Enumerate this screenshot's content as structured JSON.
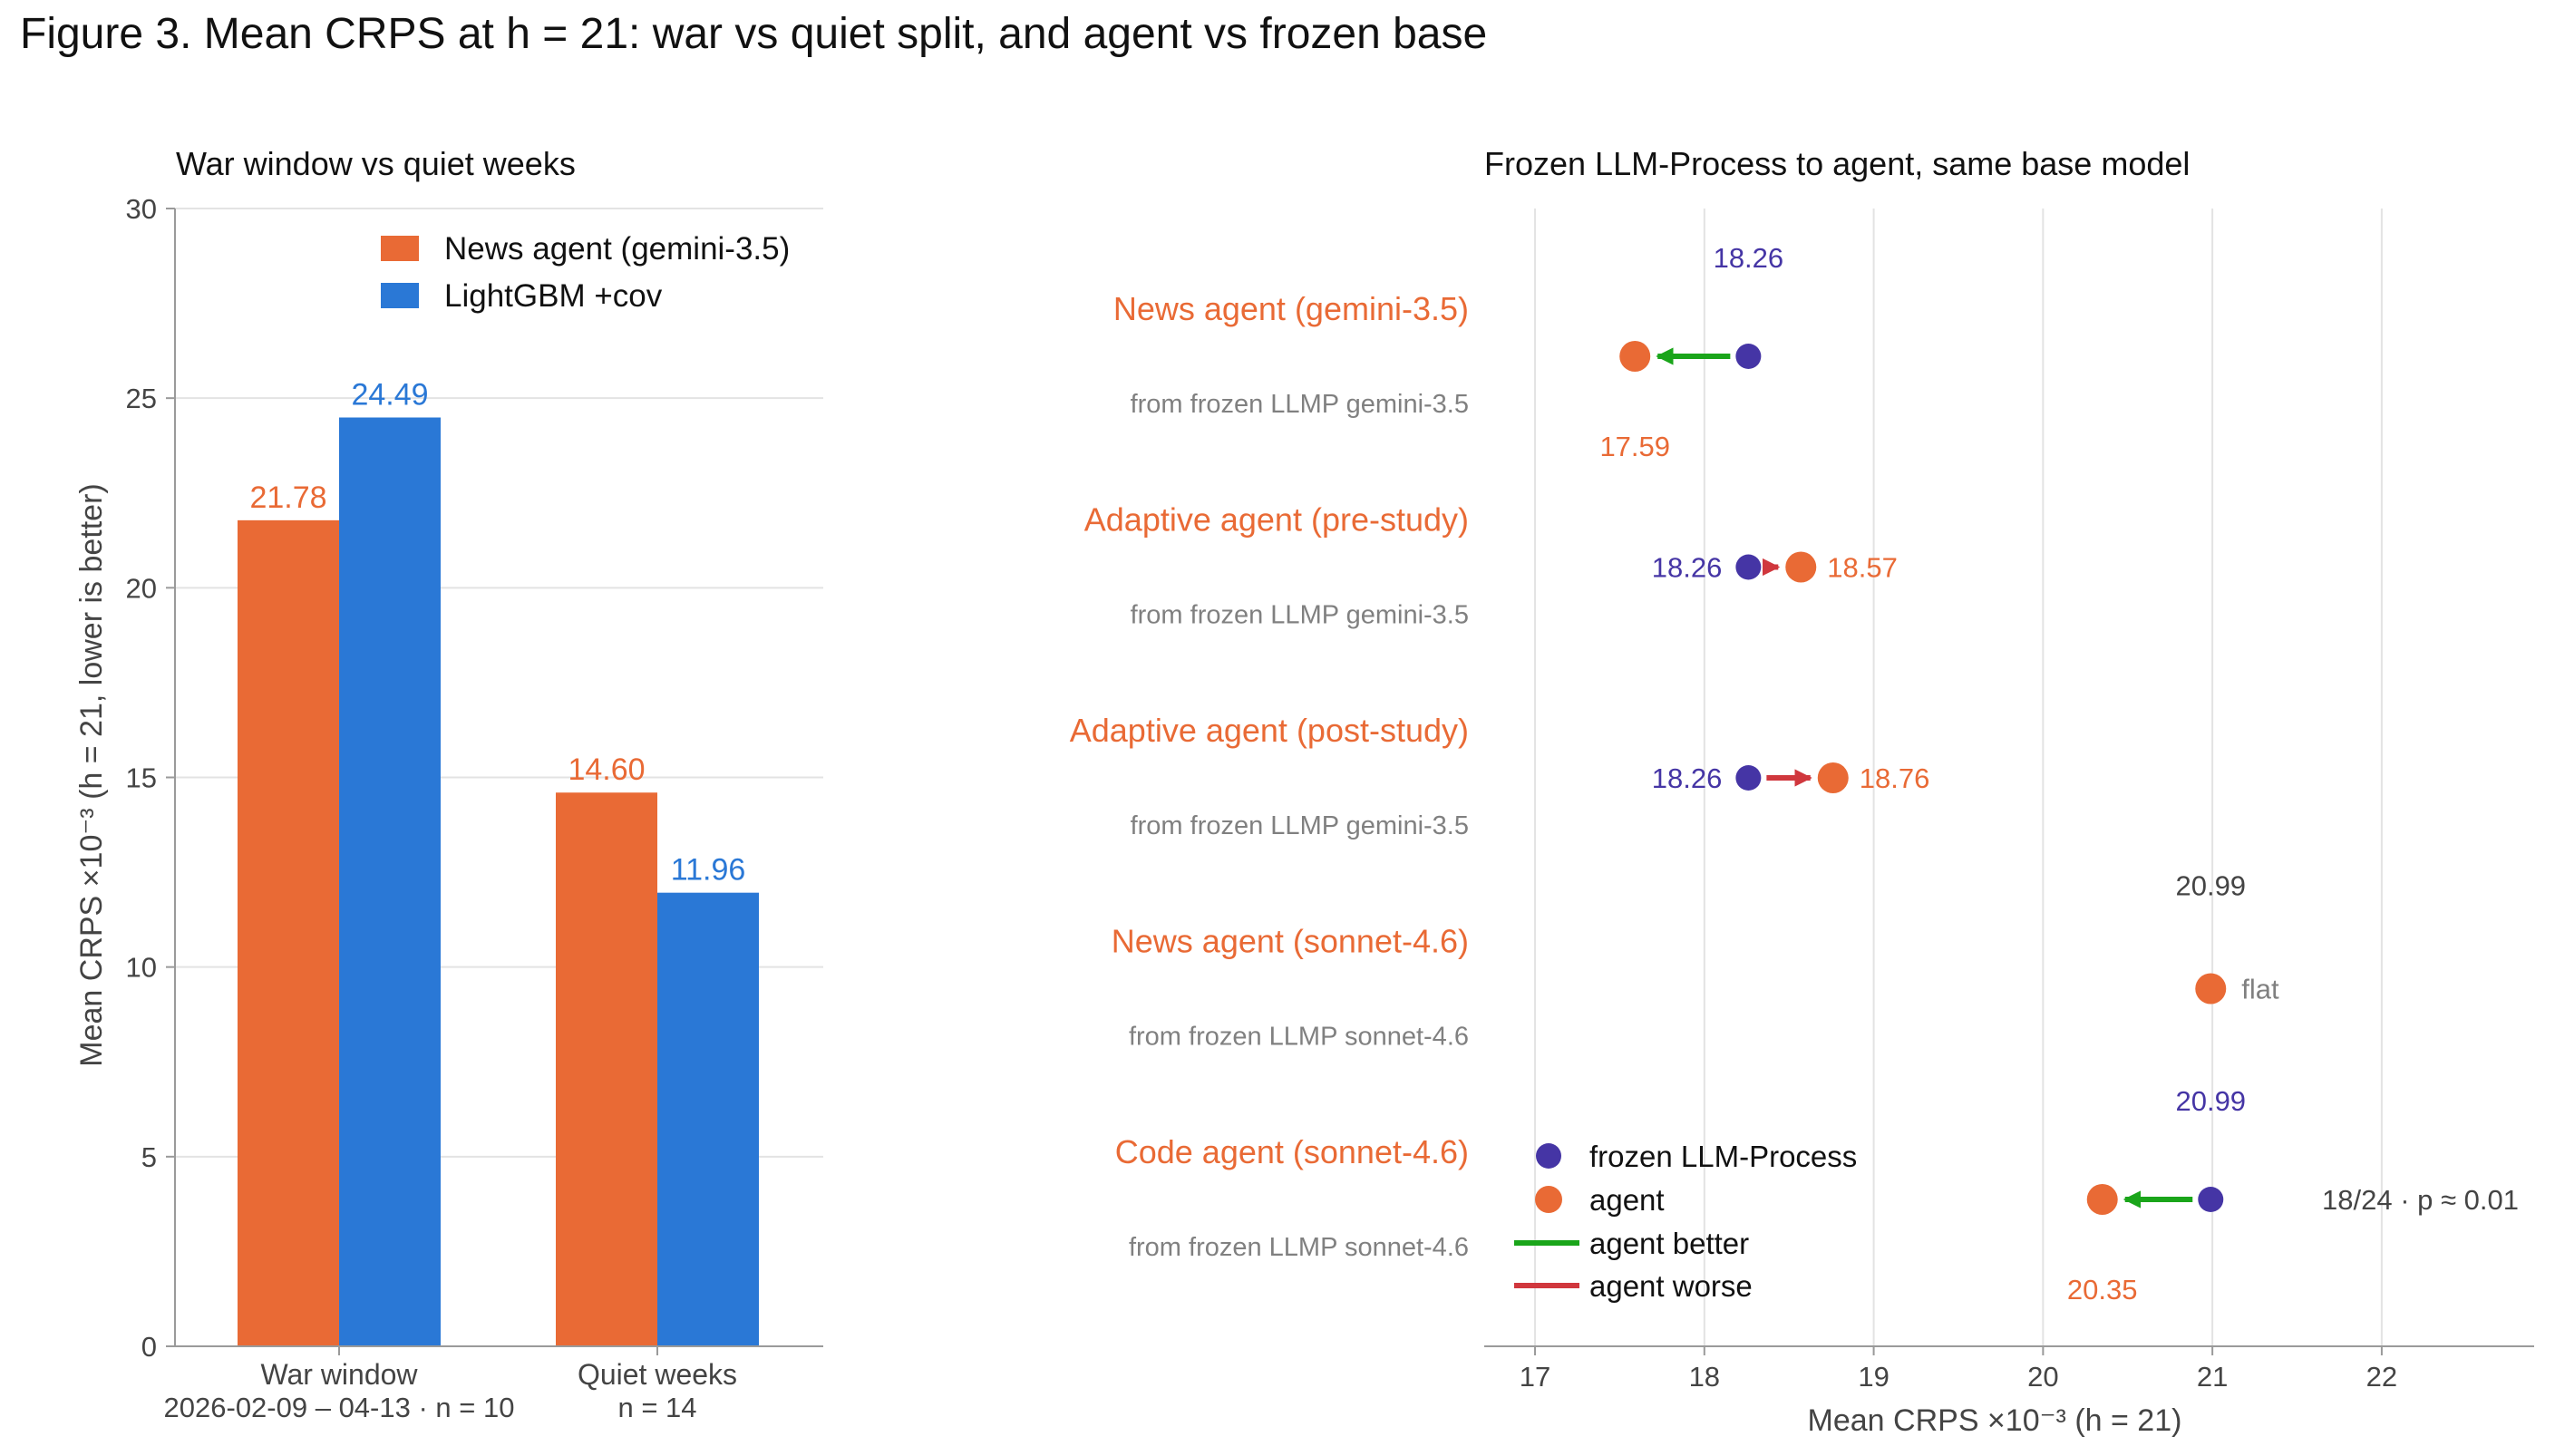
{
  "figure_title": "Figure 3.  Mean CRPS at h = 21: war vs quiet split, and agent vs frozen base",
  "colors": {
    "agent": "#E96A35",
    "lightgbm": "#2A78D6",
    "frozen": "#4535A5",
    "better": "#1AA51A",
    "worse": "#D0373D",
    "muted": "#808080",
    "grid": "#e3e3e3"
  },
  "chart_data": [
    {
      "type": "bar",
      "title": "War window vs quiet weeks",
      "ylabel": "Mean CRPS ×10⁻³  (h = 21, lower is better)",
      "ylim": [
        0,
        30
      ],
      "yticks": [
        0,
        5,
        10,
        15,
        20,
        25,
        30
      ],
      "categories": [
        "War window",
        "Quiet weeks"
      ],
      "category_sublabels": [
        "2026-02-09 – 04-13 · n = 10",
        "n = 14"
      ],
      "series": [
        {
          "name": "News agent (gemini-3.5)",
          "values": [
            21.78,
            14.6
          ],
          "labels": [
            "21.78",
            "14.60"
          ],
          "color": "#E96A35"
        },
        {
          "name": "LightGBM +cov",
          "values": [
            24.49,
            11.96
          ],
          "labels": [
            "24.49",
            "11.96"
          ],
          "color": "#2A78D6"
        }
      ],
      "legend": "top-right",
      "grid": "y"
    },
    {
      "type": "scatter",
      "title": "Frozen LLM-Process to agent, same base model",
      "xlabel": "Mean CRPS ×10⁻³  (h = 21)",
      "xlim": [
        16.7,
        22.9
      ],
      "xticks": [
        17,
        18,
        19,
        20,
        21,
        22
      ],
      "grid": "x",
      "rows": [
        {
          "name": "News agent (gemini-3.5)",
          "subtitle": "from frozen LLMP gemini-3.5",
          "frozen": 18.26,
          "agent": 17.59,
          "frozen_label": "18.26",
          "agent_label": "17.59",
          "label_layout": "stacked",
          "change": "better"
        },
        {
          "name": "Adaptive agent (pre-study)",
          "subtitle": "from frozen LLMP gemini-3.5",
          "frozen": 18.26,
          "agent": 18.57,
          "frozen_label": "18.26",
          "agent_label": "18.57",
          "label_layout": "inline",
          "change": "worse"
        },
        {
          "name": "Adaptive agent (post-study)",
          "subtitle": "from frozen LLMP gemini-3.5",
          "frozen": 18.26,
          "agent": 18.76,
          "frozen_label": "18.26",
          "agent_label": "18.76",
          "label_layout": "inline",
          "change": "worse"
        },
        {
          "name": "News agent (sonnet-4.6)",
          "subtitle": "from frozen LLMP sonnet-4.6",
          "frozen": 20.99,
          "agent": 20.99,
          "frozen_label": "20.99",
          "agent_label": "",
          "label_layout": "flat",
          "change": "flat",
          "note": "flat"
        },
        {
          "name": "Code agent (sonnet-4.6)",
          "subtitle": "from frozen LLMP sonnet-4.6",
          "frozen": 20.99,
          "agent": 20.35,
          "frozen_label": "20.99",
          "agent_label": "20.35",
          "label_layout": "stacked",
          "change": "better",
          "note": "18/24 · p ≈ 0.01"
        }
      ],
      "legend": {
        "position": "lower-left",
        "entries": [
          "frozen LLM-Process",
          "agent",
          "agent better",
          "agent worse"
        ]
      }
    }
  ]
}
